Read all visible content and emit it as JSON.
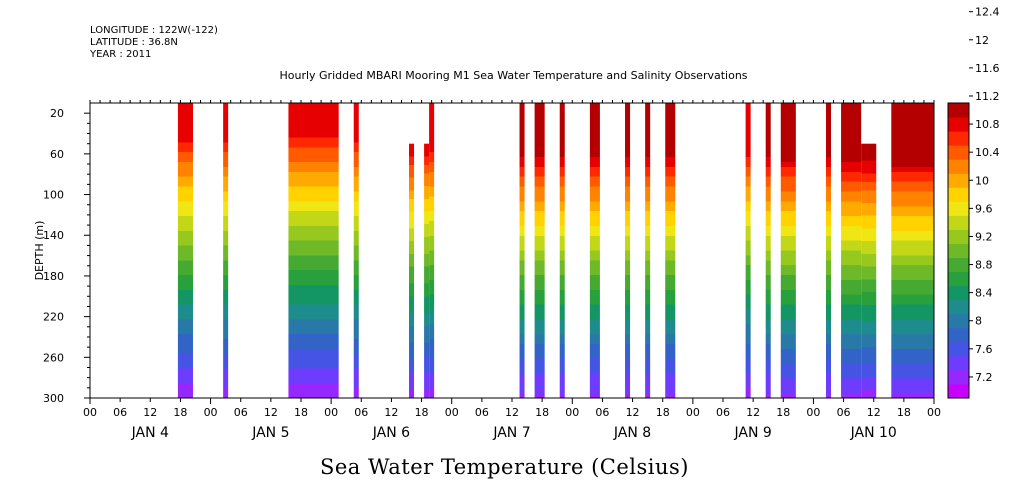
{
  "header": {
    "longitude": "LONGITUDE : 122W(-122)",
    "latitude": "LATITUDE : 36.8N",
    "year": "YEAR : 2011"
  },
  "chart_data": {
    "type": "heatmap",
    "title": "Hourly Gridded MBARI Mooring M1 Sea Water Temperature and Salinity Observations",
    "xlabel": "Sea Water Temperature (Celsius)",
    "ylabel": "DEPTH (m)",
    "x_unit": "hours since JAN 4 00:00",
    "xlim": [
      0,
      168
    ],
    "ylim": [
      300,
      10
    ],
    "y_ticks": [
      20,
      60,
      100,
      140,
      180,
      220,
      260,
      300
    ],
    "x_hour_tick_labels": [
      "00",
      "06",
      "12",
      "18",
      "00",
      "06",
      "12",
      "18",
      "00",
      "06",
      "12",
      "18",
      "00",
      "06",
      "12",
      "18",
      "00",
      "06",
      "12",
      "18",
      "00",
      "06",
      "12",
      "18",
      "00",
      "06",
      "12",
      "18",
      "00"
    ],
    "day_labels": [
      "JAN 4",
      "JAN 5",
      "JAN 6",
      "JAN 7",
      "JAN 8",
      "JAN 9",
      "JAN 10"
    ],
    "colorbar": {
      "levels": [
        7.2,
        7.6,
        8,
        8.4,
        8.8,
        9.2,
        9.6,
        10,
        10.4,
        10.8,
        11.2,
        11.6,
        12,
        12.4
      ],
      "colors": [
        "#c800ff",
        "#9628ff",
        "#6e3cff",
        "#4654e6",
        "#3264c8",
        "#2878a8",
        "#1e8c8c",
        "#149664",
        "#28a03c",
        "#46aa32",
        "#6eb928",
        "#96c81e",
        "#c3d719",
        "#f0e614",
        "#ffd200",
        "#ffaa00",
        "#ff8200",
        "#ff5a00",
        "#ff2800",
        "#e60000",
        "#b40000"
      ]
    },
    "segments": [
      {
        "start": 17.5,
        "end": 20.5,
        "top": 20,
        "mix": 0.8
      },
      {
        "start": 26.5,
        "end": 27.5,
        "top": 20,
        "mix": 0.75
      },
      {
        "start": 39.5,
        "end": 49.5,
        "top": 20,
        "mix": 0.9
      },
      {
        "start": 52.5,
        "end": 53.5,
        "top": 20,
        "mix": 0.75
      },
      {
        "start": 63.5,
        "end": 64.5,
        "top": 60,
        "mix": 0.35
      },
      {
        "start": 66.5,
        "end": 67.5,
        "top": 60,
        "mix": 0.4
      },
      {
        "start": 67.5,
        "end": 68.5,
        "top": 20,
        "mix": 0.5
      },
      {
        "start": 85.5,
        "end": 86.5,
        "top": 20,
        "mix": 0.3
      },
      {
        "start": 88.5,
        "end": 90.5,
        "top": 20,
        "mix": 0.3
      },
      {
        "start": 93.5,
        "end": 94.5,
        "top": 20,
        "mix": 0.3
      },
      {
        "start": 99.5,
        "end": 101.5,
        "top": 20,
        "mix": 0.3
      },
      {
        "start": 106.5,
        "end": 107.5,
        "top": 20,
        "mix": 0.3
      },
      {
        "start": 110.5,
        "end": 111.5,
        "top": 20,
        "mix": 0.3
      },
      {
        "start": 114.5,
        "end": 116.5,
        "top": 20,
        "mix": 0.3
      },
      {
        "start": 130.5,
        "end": 131.5,
        "top": 20,
        "mix": 0.4
      },
      {
        "start": 134.5,
        "end": 135.5,
        "top": 20,
        "mix": 0.3
      },
      {
        "start": 137.5,
        "end": 140.5,
        "top": 20,
        "mix": 0.25
      },
      {
        "start": 146.5,
        "end": 147.5,
        "top": 20,
        "mix": 0.3
      },
      {
        "start": 149.5,
        "end": 153.5,
        "top": 20,
        "mix": 0.15
      },
      {
        "start": 153.5,
        "end": 156.5,
        "top": 60,
        "mix": 0.15
      },
      {
        "start": 159.5,
        "end": 168,
        "top": 20,
        "mix": 0.1
      }
    ]
  }
}
